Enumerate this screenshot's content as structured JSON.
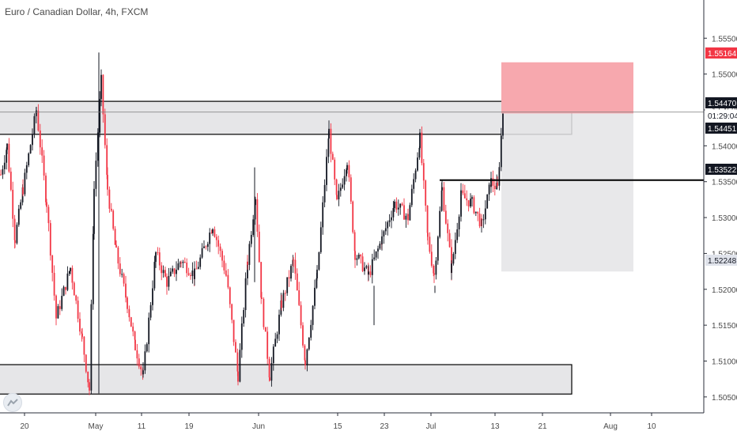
{
  "header": {
    "title": "Euro / Canadian Dollar, 4h, FXCM"
  },
  "chart_data": {
    "type": "candlestick",
    "symbol": "Euro / Canadian Dollar",
    "timeframe": "4h",
    "source": "FXCM",
    "grid": false,
    "ylim": [
      1.503,
      1.559
    ],
    "y_ticks": [
      "1.55500",
      "1.55000",
      "1.54500",
      "1.54000",
      "1.53500",
      "1.53000",
      "1.52500",
      "1.52000",
      "1.51500",
      "1.51000",
      "1.50500"
    ],
    "x_ticks": [
      "20",
      "May",
      "11",
      "19",
      "Jun",
      "15",
      "23",
      "Jul",
      "13",
      "21",
      "Aug",
      "10"
    ],
    "price_labels": [
      {
        "name": "take-profit-label",
        "value": "1.55164",
        "bg": "#f23645",
        "fg": "#ffffff"
      },
      {
        "name": "current-price-label",
        "value": "1.54470",
        "bg": "#131722",
        "fg": "#ffffff"
      },
      {
        "name": "countdown-label",
        "value": "01:29:04",
        "bg": "#ffffff",
        "fg": "#131722"
      },
      {
        "name": "entry-price-label",
        "value": "1.54451",
        "bg": "#131722",
        "fg": "#ffffff"
      },
      {
        "name": "horizontal-line-label",
        "value": "1.53522",
        "bg": "#131722",
        "fg": "#ffffff"
      },
      {
        "name": "stop-loss-label",
        "value": "1.52248",
        "bg": "#e0e3eb",
        "fg": "#131722"
      }
    ],
    "zones": [
      {
        "name": "upper-zone",
        "top": 1.5462,
        "bottom": 1.5416
      },
      {
        "name": "lower-zone",
        "top": 1.5095,
        "bottom": 1.5054
      }
    ],
    "horizontal_line": {
      "price": 1.53522
    },
    "position": {
      "entry": 1.54451,
      "take_profit": 1.55164,
      "stop_loss": 1.52248,
      "profit_color": "#f7a8ae",
      "loss_color": "#e4e4e6"
    },
    "colors": {
      "up": "#131722",
      "down": "#f23645",
      "zone_fill": "#e6e6e8",
      "line": "#000000"
    },
    "ohlc_pivots": [
      {
        "x": 0,
        "p": 1.536
      },
      {
        "x": 8,
        "p": 1.54
      },
      {
        "x": 18,
        "p": 1.527
      },
      {
        "x": 28,
        "p": 1.534
      },
      {
        "x": 45,
        "p": 1.545
      },
      {
        "x": 58,
        "p": 1.532
      },
      {
        "x": 70,
        "p": 1.516
      },
      {
        "x": 88,
        "p": 1.523
      },
      {
        "x": 103,
        "p": 1.513
      },
      {
        "x": 112,
        "p": 1.506
      },
      {
        "x": 118,
        "p": 1.534
      },
      {
        "x": 127,
        "p": 1.549
      },
      {
        "x": 135,
        "p": 1.534
      },
      {
        "x": 146,
        "p": 1.525
      },
      {
        "x": 160,
        "p": 1.518
      },
      {
        "x": 170,
        "p": 1.512
      },
      {
        "x": 180,
        "p": 1.508
      },
      {
        "x": 196,
        "p": 1.525
      },
      {
        "x": 210,
        "p": 1.521
      },
      {
        "x": 228,
        "p": 1.524
      },
      {
        "x": 245,
        "p": 1.522
      },
      {
        "x": 268,
        "p": 1.529
      },
      {
        "x": 285,
        "p": 1.522
      },
      {
        "x": 300,
        "p": 1.508
      },
      {
        "x": 312,
        "p": 1.524
      },
      {
        "x": 322,
        "p": 1.533
      },
      {
        "x": 330,
        "p": 1.518
      },
      {
        "x": 340,
        "p": 1.508
      },
      {
        "x": 355,
        "p": 1.518
      },
      {
        "x": 370,
        "p": 1.524
      },
      {
        "x": 385,
        "p": 1.51
      },
      {
        "x": 400,
        "p": 1.522
      },
      {
        "x": 415,
        "p": 1.542
      },
      {
        "x": 425,
        "p": 1.532
      },
      {
        "x": 438,
        "p": 1.538
      },
      {
        "x": 448,
        "p": 1.525
      },
      {
        "x": 465,
        "p": 1.522
      },
      {
        "x": 482,
        "p": 1.527
      },
      {
        "x": 498,
        "p": 1.532
      },
      {
        "x": 515,
        "p": 1.53
      },
      {
        "x": 530,
        "p": 1.541
      },
      {
        "x": 540,
        "p": 1.527
      },
      {
        "x": 548,
        "p": 1.522
      },
      {
        "x": 558,
        "p": 1.534
      },
      {
        "x": 570,
        "p": 1.523
      },
      {
        "x": 582,
        "p": 1.533
      },
      {
        "x": 596,
        "p": 1.532
      },
      {
        "x": 608,
        "p": 1.529
      },
      {
        "x": 620,
        "p": 1.535
      },
      {
        "x": 628,
        "p": 1.534
      },
      {
        "x": 635,
        "p": 1.5447
      }
    ]
  }
}
